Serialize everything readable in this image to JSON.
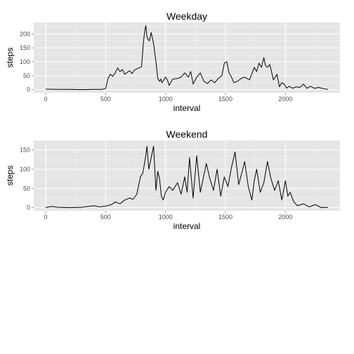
{
  "chart_data": [
    {
      "type": "line",
      "title": "Weekday",
      "xlabel": "interval",
      "ylabel": "steps",
      "xlim": [
        -100,
        2455
      ],
      "ylim": [
        -11,
        241
      ],
      "xticks": [
        0,
        500,
        1000,
        1500,
        2000
      ],
      "yticks": [
        0,
        50,
        100,
        150,
        200
      ],
      "xtick_labels": [
        "0",
        "500",
        "1000",
        "1500",
        "2000"
      ],
      "ytick_labels": [
        "0",
        "50",
        "100",
        "150",
        "200"
      ],
      "grid": true,
      "line_color": "#000000",
      "x": [
        0,
        100,
        200,
        300,
        400,
        470,
        500,
        520,
        540,
        560,
        580,
        600,
        620,
        640,
        660,
        680,
        700,
        720,
        740,
        760,
        780,
        800,
        815,
        825,
        835,
        845,
        855,
        865,
        880,
        900,
        920,
        935,
        950,
        960,
        970,
        1000,
        1015,
        1030,
        1060,
        1100,
        1130,
        1160,
        1190,
        1210,
        1230,
        1260,
        1290,
        1320,
        1350,
        1380,
        1410,
        1440,
        1470,
        1490,
        1510,
        1530,
        1550,
        1570,
        1600,
        1630,
        1660,
        1700,
        1740,
        1760,
        1780,
        1800,
        1820,
        1835,
        1850,
        1870,
        1900,
        1930,
        1950,
        1970,
        1990,
        2010,
        2030,
        2060,
        2090,
        2120,
        2150,
        2180,
        2210,
        2240,
        2280,
        2320,
        2355
      ],
      "y": [
        2,
        1,
        1,
        0,
        1,
        1,
        4,
        40,
        55,
        48,
        60,
        78,
        65,
        72,
        55,
        62,
        68,
        58,
        70,
        75,
        78,
        82,
        170,
        205,
        230,
        190,
        180,
        175,
        205,
        165,
        100,
        40,
        30,
        38,
        25,
        45,
        35,
        15,
        38,
        40,
        45,
        60,
        45,
        65,
        20,
        45,
        60,
        30,
        22,
        35,
        25,
        40,
        50,
        95,
        100,
        60,
        45,
        25,
        30,
        40,
        45,
        35,
        80,
        65,
        95,
        80,
        115,
        85,
        80,
        90,
        35,
        55,
        10,
        25,
        20,
        5,
        12,
        5,
        10,
        8,
        20,
        5,
        12,
        5,
        8,
        3,
        1
      ]
    },
    {
      "type": "line",
      "title": "Weekend",
      "xlabel": "interval",
      "ylabel": "steps",
      "xlim": [
        -100,
        2455
      ],
      "ylim": [
        -8,
        175
      ],
      "xticks": [
        0,
        500,
        1000,
        1500,
        2000
      ],
      "yticks": [
        0,
        50,
        100,
        150
      ],
      "xtick_labels": [
        "0",
        "500",
        "1000",
        "1500",
        "2000"
      ],
      "ytick_labels": [
        "0",
        "50",
        "100",
        "150"
      ],
      "grid": true,
      "line_color": "#000000",
      "x": [
        0,
        30,
        60,
        100,
        200,
        300,
        350,
        400,
        450,
        500,
        550,
        580,
        620,
        660,
        700,
        730,
        760,
        790,
        810,
        830,
        845,
        860,
        880,
        900,
        920,
        935,
        950,
        965,
        980,
        1000,
        1030,
        1060,
        1100,
        1130,
        1160,
        1180,
        1200,
        1230,
        1260,
        1290,
        1310,
        1340,
        1370,
        1400,
        1430,
        1460,
        1490,
        1520,
        1550,
        1580,
        1610,
        1640,
        1660,
        1690,
        1720,
        1740,
        1760,
        1790,
        1820,
        1850,
        1880,
        1910,
        1940,
        1970,
        2000,
        2020,
        2040,
        2070,
        2100,
        2150,
        2200,
        2250,
        2300,
        2355
      ],
      "y": [
        0,
        2,
        3,
        1,
        0,
        1,
        3,
        5,
        2,
        4,
        8,
        15,
        10,
        20,
        25,
        22,
        35,
        80,
        90,
        125,
        160,
        100,
        130,
        160,
        45,
        95,
        75,
        30,
        20,
        40,
        55,
        45,
        65,
        35,
        80,
        40,
        130,
        25,
        135,
        40,
        70,
        115,
        75,
        45,
        100,
        30,
        80,
        55,
        105,
        145,
        60,
        95,
        120,
        55,
        20,
        70,
        100,
        40,
        65,
        120,
        75,
        45,
        70,
        20,
        70,
        30,
        40,
        15,
        5,
        10,
        2,
        8,
        0,
        1
      ]
    }
  ]
}
